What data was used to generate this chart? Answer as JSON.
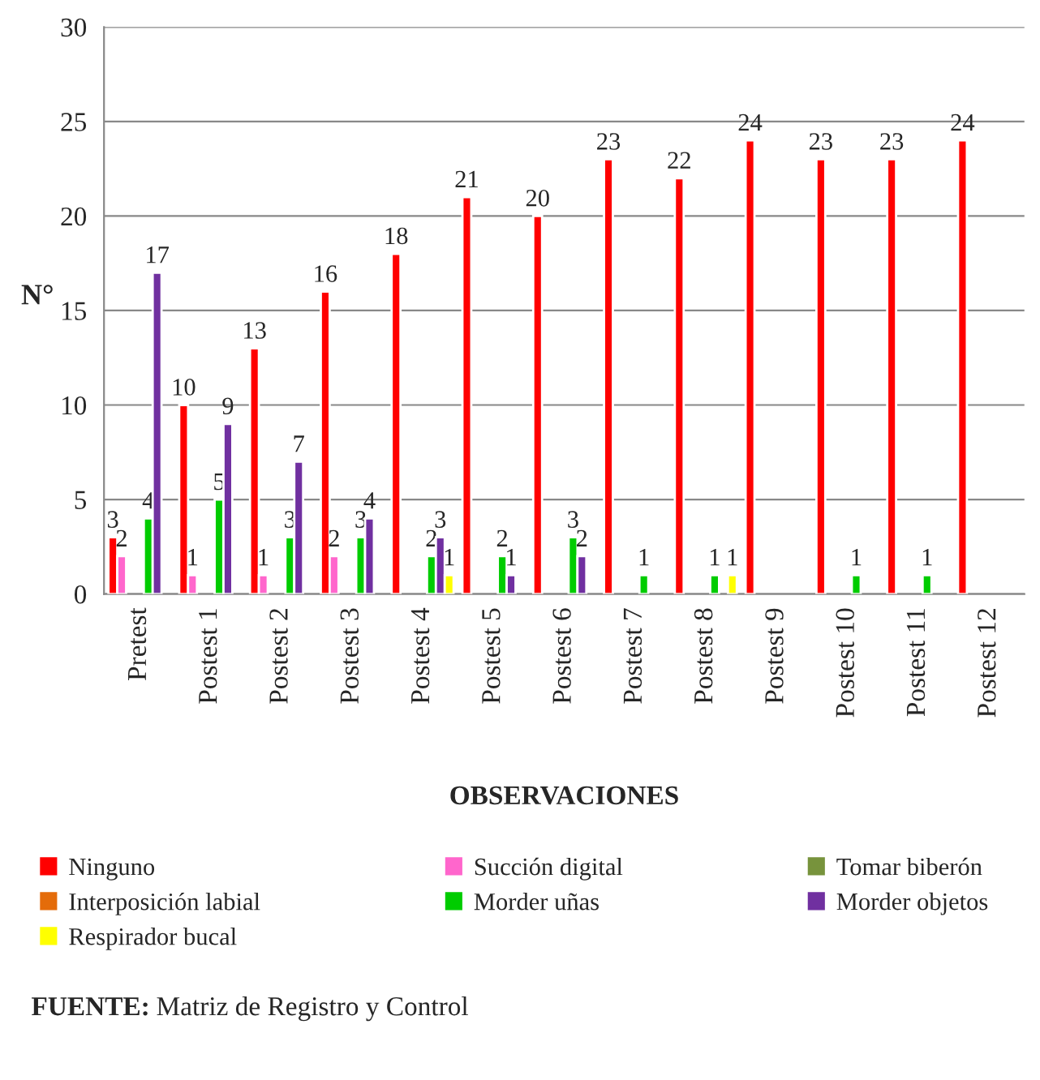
{
  "chart_data": {
    "type": "bar",
    "xlabel": "OBSERVACIONES",
    "ylabel": "N°",
    "categories": [
      "Pretest",
      "Postest 1",
      "Postest 2",
      "Postest 3",
      "Postest 4",
      "Postest 5",
      "Postest 6",
      "Postest 7",
      "Postest 8",
      "Postest 9",
      "Postest 10",
      "Postest 11",
      "Postest 12"
    ],
    "series": [
      {
        "name": "Ninguno",
        "color": "#ff0000",
        "values": [
          3,
          10,
          13,
          16,
          18,
          21,
          20,
          23,
          22,
          24,
          23,
          23,
          24
        ]
      },
      {
        "name": "Succión digital",
        "color": "#ff66cc",
        "values": [
          2,
          1,
          1,
          2,
          null,
          null,
          null,
          null,
          null,
          null,
          null,
          null,
          null
        ]
      },
      {
        "name": "Tomar biberón",
        "color": "#77933c",
        "values": [
          null,
          null,
          null,
          null,
          null,
          null,
          null,
          null,
          null,
          null,
          null,
          null,
          null
        ]
      },
      {
        "name": "Interposición labial",
        "color": "#e46c0a",
        "values": [
          null,
          null,
          null,
          null,
          null,
          null,
          null,
          null,
          null,
          null,
          null,
          null,
          null
        ]
      },
      {
        "name": "Morder uñas",
        "color": "#00cc00",
        "values": [
          4,
          5,
          3,
          3,
          2,
          2,
          3,
          1,
          1,
          null,
          1,
          1,
          null
        ]
      },
      {
        "name": "Morder objetos",
        "color": "#7030a0",
        "values": [
          17,
          9,
          7,
          4,
          3,
          1,
          2,
          null,
          null,
          null,
          null,
          null,
          null
        ]
      },
      {
        "name": "Respirador bucal",
        "color": "#ffff00",
        "values": [
          null,
          null,
          null,
          null,
          1,
          null,
          null,
          null,
          1,
          null,
          null,
          null,
          null
        ]
      }
    ],
    "ylim": [
      0,
      30
    ],
    "yticks": [
      0,
      5,
      10,
      15,
      20,
      25,
      30
    ],
    "grid": "y",
    "legend": "bottom",
    "data_labels": true,
    "annotations": [
      "FUENTE: Matriz de Registro y Control"
    ]
  }
}
